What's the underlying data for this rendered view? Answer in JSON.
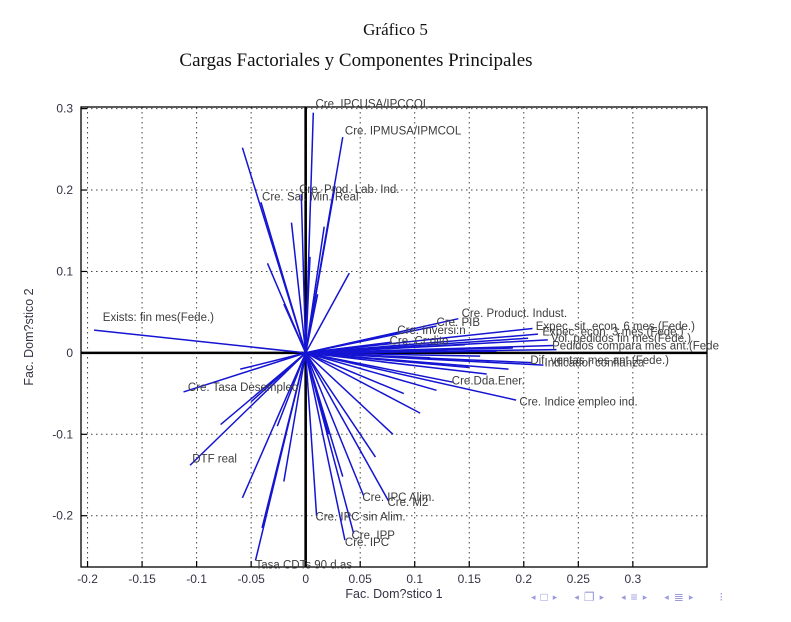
{
  "page": {
    "title": "Gráfico 5",
    "subtitle": "Cargas Factoriales y Componentes Principales"
  },
  "chart_data": {
    "type": "line",
    "subtype": "biplot-factor-loadings",
    "title": "Gráfico 5",
    "subtitle": "Cargas Factoriales y Componentes Principales",
    "xlabel": "Fac. Dom?stico 1",
    "ylabel": "Fac. Dom?stico 2",
    "xlim": [
      -0.206,
      0.368
    ],
    "ylim": [
      -0.263,
      0.302
    ],
    "xticks": [
      -0.2,
      -0.15,
      -0.1,
      -0.05,
      0,
      0.05,
      0.1,
      0.15,
      0.2,
      0.25,
      0.3
    ],
    "yticks": [
      0.3,
      0.2,
      0.1,
      0,
      -0.1,
      -0.2
    ],
    "grid": "dotted",
    "zero_axes": true,
    "legend": "none",
    "vector_color": "#1414d2",
    "axis_color": "#000000",
    "grid_color": "#444444",
    "text_color": "#3d3d3d",
    "tick_text_color": "#333344",
    "labeled_vectors": [
      {
        "label": "Cre. IPCUSA/IPCCOL",
        "x": 0.007,
        "y": 0.295,
        "label_x": 0.009,
        "label_y": 0.306
      },
      {
        "label": "Cre. IPMUSA/IPMCOL",
        "x": 0.034,
        "y": 0.265,
        "label_x": 0.036,
        "label_y": 0.273
      },
      {
        "label": "Cre. Prod. Lab. Ind.",
        "x": -0.004,
        "y": 0.195,
        "label_x": -0.006,
        "label_y": 0.201
      },
      {
        "label": "Cre. Sal. Min. Real",
        "x": -0.041,
        "y": 0.185,
        "label_x": -0.04,
        "label_y": 0.192
      },
      {
        "label": "Exists: fin mes(Fede.)",
        "x": -0.194,
        "y": 0.028,
        "label_x": -0.186,
        "label_y": 0.044
      },
      {
        "label": "Cre. Tasa Desempleo",
        "x": -0.112,
        "y": -0.048,
        "label_x": -0.108,
        "label_y": -0.042
      },
      {
        "label": "DTF real",
        "x": -0.106,
        "y": -0.138,
        "label_x": -0.104,
        "label_y": -0.13
      },
      {
        "label": "Cre. Product. Indust.",
        "x": 0.14,
        "y": 0.042,
        "label_x": 0.143,
        "label_y": 0.049
      },
      {
        "label": "Cre. PIB",
        "x": 0.12,
        "y": 0.033,
        "label_x": 0.12,
        "label_y": 0.038
      },
      {
        "label": "Cre. Inversi:n",
        "x": 0.085,
        "y": 0.025,
        "label_x": 0.084,
        "label_y": 0.028
      },
      {
        "label": "Cre. Cr:dito",
        "x": 0.078,
        "y": 0.013,
        "label_x": 0.077,
        "label_y": 0.015
      },
      {
        "label": "Expec. sit. econ. 6 mes.(Fede.)",
        "x": 0.208,
        "y": 0.03,
        "label_x": 0.211,
        "label_y": 0.033
      },
      {
        "label": "Expec. econ. 3 mes.(Fede.)",
        "x": 0.213,
        "y": 0.023,
        "label_x": 0.217,
        "label_y": 0.026
      },
      {
        "label": "Vol. pedidos fin mes(Fede.)",
        "x": 0.222,
        "y": 0.016,
        "label_x": 0.225,
        "label_y": 0.018
      },
      {
        "label": "Pedidos compara mes ant.(Fede",
        "x": 0.227,
        "y": 0.009,
        "label_x": 0.226,
        "label_y": 0.009
      },
      {
        "label": "Dif. ventas mes ant.(Fede.)",
        "x": 0.207,
        "y": -0.012,
        "label_x": 0.206,
        "label_y": -0.009
      },
      {
        "label": "Indicador confianza",
        "x": 0.218,
        "y": -0.015,
        "label_x": 0.219,
        "label_y": -0.012
      },
      {
        "label": "Cre.Dda.Ener.",
        "x": 0.135,
        "y": -0.036,
        "label_x": 0.134,
        "label_y": -0.034
      },
      {
        "label": "Cre. Indice empleo ind.",
        "x": 0.193,
        "y": -0.058,
        "label_x": 0.196,
        "label_y": -0.06
      },
      {
        "label": "Cre. IPC Alim.",
        "x": 0.053,
        "y": -0.175,
        "label_x": 0.052,
        "label_y": -0.177
      },
      {
        "label": "Cre. M2",
        "x": 0.076,
        "y": -0.182,
        "label_x": 0.075,
        "label_y": -0.183
      },
      {
        "label": "Cre. IPC sin Alim.",
        "x": 0.01,
        "y": -0.2,
        "label_x": 0.009,
        "label_y": -0.201
      },
      {
        "label": "Cre. IPP",
        "x": 0.044,
        "y": -0.222,
        "label_x": 0.042,
        "label_y": -0.224
      },
      {
        "label": "Cre. IPC",
        "x": 0.036,
        "y": -0.23,
        "label_x": 0.036,
        "label_y": -0.232
      },
      {
        "label": "Tasa CDTs 90 d.as",
        "x": -0.046,
        "y": -0.255,
        "label_x": -0.046,
        "label_y": -0.26
      }
    ],
    "unlabeled_vectors": [
      [
        -0.058,
        0.252
      ],
      [
        -0.035,
        0.11
      ],
      [
        -0.013,
        0.16
      ],
      [
        0.004,
        0.118
      ],
      [
        0.017,
        0.155
      ],
      [
        0.027,
        0.205
      ],
      [
        0.04,
        0.098
      ],
      [
        0.011,
        0.072
      ],
      [
        -0.02,
        0.06
      ],
      [
        0.19,
        0.006
      ],
      [
        0.175,
        0.002
      ],
      [
        0.16,
        -0.004
      ],
      [
        0.146,
        0.01
      ],
      [
        0.13,
        0.004
      ],
      [
        0.114,
        -0.006
      ],
      [
        0.1,
        0.002
      ],
      [
        0.186,
        -0.02
      ],
      [
        0.166,
        -0.026
      ],
      [
        0.15,
        -0.018
      ],
      [
        0.204,
        0.018
      ],
      [
        0.062,
        0.01
      ],
      [
        0.05,
        -0.006
      ],
      [
        0.23,
        0.004
      ],
      [
        0.09,
        -0.05
      ],
      [
        0.105,
        -0.074
      ],
      [
        0.08,
        -0.1
      ],
      [
        0.064,
        -0.128
      ],
      [
        0.021,
        -0.1
      ],
      [
        0.034,
        -0.152
      ],
      [
        0.12,
        -0.046
      ],
      [
        -0.02,
        -0.158
      ],
      [
        -0.04,
        -0.215
      ],
      [
        -0.058,
        -0.178
      ],
      [
        -0.026,
        -0.09
      ],
      [
        -0.05,
        -0.06
      ],
      [
        -0.078,
        -0.088
      ],
      [
        -0.06,
        -0.02
      ],
      [
        -0.036,
        -0.042
      ]
    ]
  },
  "status_bar": {
    "prev_glyph": "◂",
    "next_glyph": "▸",
    "more_glyph": "⁝",
    "groups": [
      {
        "name": "browse-page",
        "icon": "□"
      },
      {
        "name": "browse-object",
        "icon": "❐"
      },
      {
        "name": "browse-edits",
        "icon": "≡"
      },
      {
        "name": "browse-headings",
        "icon": "≣"
      }
    ],
    "icon_color": "#9a9ade"
  }
}
